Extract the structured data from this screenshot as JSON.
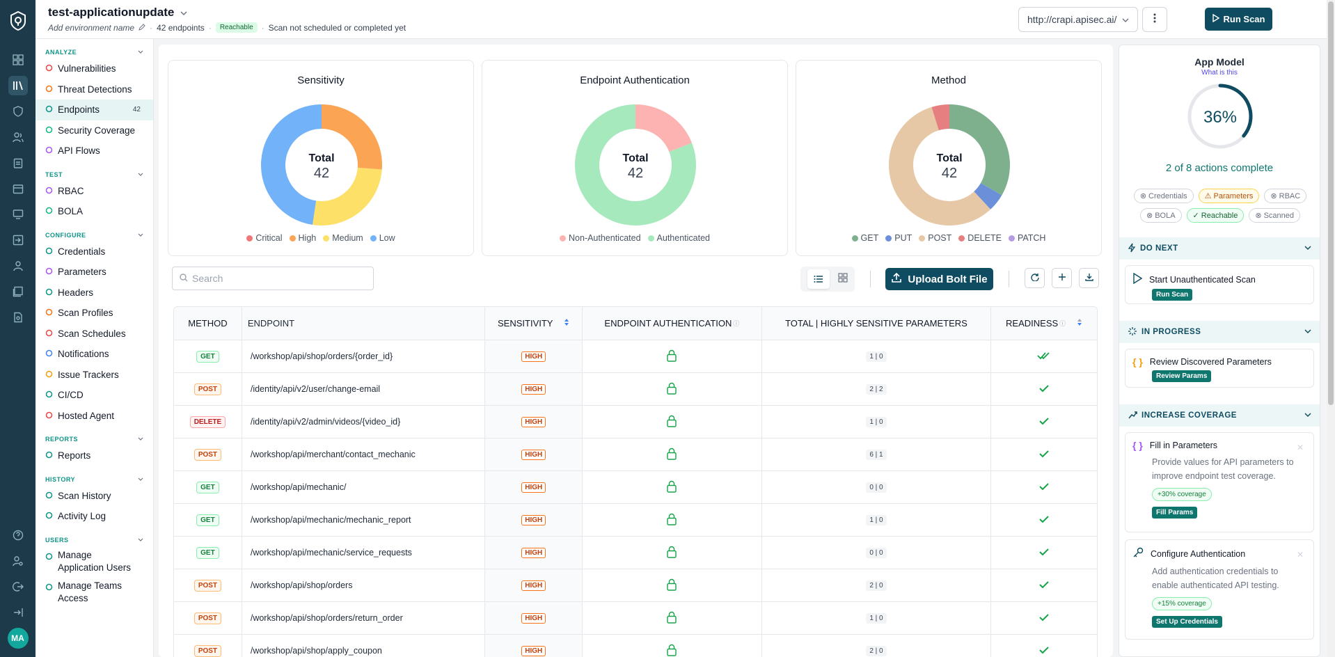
{
  "header": {
    "app_name": "test-applicationupdate",
    "env_placeholder": "Add environment name",
    "endpoints_count": "42 endpoints",
    "reachable": "Reachable",
    "scan_status": "Scan not scheduled or completed yet",
    "url": "http://crapi.apisec.ai/",
    "run_scan": "Run Scan"
  },
  "user": {
    "initials": "MA"
  },
  "sidebar": {
    "analyze": "ANALYZE",
    "analyze_items": [
      {
        "label": "Vulnerabilities",
        "icon": "bug-icon",
        "color": "#ef4444"
      },
      {
        "label": "Threat Detections",
        "icon": "radar-icon",
        "color": "#f97316"
      },
      {
        "label": "Endpoints",
        "icon": "endpoints-icon",
        "color": "#0d9488",
        "count": "42"
      },
      {
        "label": "Security Coverage",
        "icon": "shield-icon",
        "color": "#10b981"
      },
      {
        "label": "API Flows",
        "icon": "flow-icon",
        "color": "#a855f7"
      }
    ],
    "test": "TEST",
    "test_items": [
      {
        "label": "RBAC",
        "icon": "rbac-icon",
        "color": "#a855f7"
      },
      {
        "label": "BOLA",
        "icon": "bola-icon",
        "color": "#10b981"
      }
    ],
    "configure": "CONFIGURE",
    "configure_items": [
      {
        "label": "Credentials",
        "icon": "key-icon",
        "color": "#0d9488"
      },
      {
        "label": "Parameters",
        "icon": "braces-icon",
        "color": "#a855f7"
      },
      {
        "label": "Headers",
        "icon": "headers-icon",
        "color": "#0d9488"
      },
      {
        "label": "Scan Profiles",
        "icon": "profile-icon",
        "color": "#f97316"
      },
      {
        "label": "Scan Schedules",
        "icon": "calendar-icon",
        "color": "#ef4444"
      },
      {
        "label": "Notifications",
        "icon": "bell-icon",
        "color": "#3b82f6"
      },
      {
        "label": "Issue Trackers",
        "icon": "tracker-icon",
        "color": "#f59e0b"
      },
      {
        "label": "CI/CD",
        "icon": "cicd-icon",
        "color": "#0d9488"
      },
      {
        "label": "Hosted Agent",
        "icon": "agent-icon",
        "color": "#ef4444"
      }
    ],
    "reports": "REPORTS",
    "reports_items": [
      {
        "label": "Reports",
        "icon": "report-icon",
        "color": "#0d9488"
      }
    ],
    "history": "HISTORY",
    "history_items": [
      {
        "label": "Scan History",
        "icon": "history-icon",
        "color": "#0d9488"
      },
      {
        "label": "Activity Log",
        "icon": "activity-icon",
        "color": "#0d9488"
      }
    ],
    "users": "USERS",
    "users_items": [
      {
        "label": "Manage Application Users",
        "icon": "users-icon",
        "color": "#0d9488"
      },
      {
        "label": "Manage Teams Access",
        "icon": "teams-icon",
        "color": "#0d9488"
      }
    ]
  },
  "charts": {
    "total_label": "Total",
    "sensitivity": {
      "title": "Sensitivity",
      "total": "42",
      "slices": [
        {
          "name": "High",
          "value": 11,
          "color": "#fba454"
        },
        {
          "name": "Medium",
          "value": 11,
          "color": "#fde068"
        },
        {
          "name": "Low",
          "value": 20,
          "color": "#71b2f8"
        }
      ],
      "legend": [
        {
          "name": "Critical",
          "color": "#ef7777"
        },
        {
          "name": "High",
          "color": "#fba454"
        },
        {
          "name": "Medium",
          "color": "#fde068"
        },
        {
          "name": "Low",
          "color": "#71b2f8"
        }
      ]
    },
    "auth": {
      "title": "Endpoint Authentication",
      "total": "42",
      "slices": [
        {
          "name": "Non-Authenticated",
          "value": 8,
          "color": "#fdb3b1"
        },
        {
          "name": "Authenticated",
          "value": 34,
          "color": "#a6e9bd"
        }
      ],
      "legend": [
        {
          "name": "Non-Authenticated",
          "color": "#fdb3b1"
        },
        {
          "name": "Authenticated",
          "color": "#a6e9bd"
        }
      ]
    },
    "method": {
      "title": "Method",
      "total": "42",
      "slices": [
        {
          "name": "GET",
          "value": 14,
          "color": "#7fb08d"
        },
        {
          "name": "PUT",
          "value": 2,
          "color": "#6b8fd9"
        },
        {
          "name": "POST",
          "value": 24,
          "color": "#e6c8a6"
        },
        {
          "name": "DELETE",
          "value": 2,
          "color": "#e57f80"
        }
      ],
      "legend": [
        {
          "name": "GET",
          "color": "#7fb08d"
        },
        {
          "name": "PUT",
          "color": "#6b8fd9"
        },
        {
          "name": "POST",
          "color": "#e6c8a6"
        },
        {
          "name": "DELETE",
          "color": "#e57f80"
        },
        {
          "name": "PATCH",
          "color": "#b79ce3"
        }
      ]
    }
  },
  "toolbar": {
    "search_placeholder": "Search",
    "upload": "Upload Bolt File"
  },
  "table": {
    "headers": [
      "METHOD",
      "ENDPOINT",
      "SENSITIVITY",
      "ENDPOINT AUTHENTICATION",
      "TOTAL | HIGHLY SENSITIVE PARAMETERS",
      "READINESS"
    ],
    "rows": [
      {
        "method": "GET",
        "endpoint": "/workshop/api/shop/orders/{order_id}",
        "sensitivity": "HIGH",
        "params": "1 | 0",
        "readiness": "double"
      },
      {
        "method": "POST",
        "endpoint": "/identity/api/v2/user/change-email",
        "sensitivity": "HIGH",
        "params": "2 | 2",
        "readiness": "single"
      },
      {
        "method": "DELETE",
        "endpoint": "/identity/api/v2/admin/videos/{video_id}",
        "sensitivity": "HIGH",
        "params": "1 | 0",
        "readiness": "single"
      },
      {
        "method": "POST",
        "endpoint": "/workshop/api/merchant/contact_mechanic",
        "sensitivity": "HIGH",
        "params": "6 | 1",
        "readiness": "single"
      },
      {
        "method": "GET",
        "endpoint": "/workshop/api/mechanic/",
        "sensitivity": "HIGH",
        "params": "0 | 0",
        "readiness": "single"
      },
      {
        "method": "GET",
        "endpoint": "/workshop/api/mechanic/mechanic_report",
        "sensitivity": "HIGH",
        "params": "1 | 0",
        "readiness": "single"
      },
      {
        "method": "GET",
        "endpoint": "/workshop/api/mechanic/service_requests",
        "sensitivity": "HIGH",
        "params": "0 | 0",
        "readiness": "single"
      },
      {
        "method": "POST",
        "endpoint": "/workshop/api/shop/orders",
        "sensitivity": "HIGH",
        "params": "2 | 0",
        "readiness": "single"
      },
      {
        "method": "POST",
        "endpoint": "/workshop/api/shop/orders/return_order",
        "sensitivity": "HIGH",
        "params": "1 | 0",
        "readiness": "single"
      },
      {
        "method": "POST",
        "endpoint": "/workshop/api/shop/apply_coupon",
        "sensitivity": "HIGH",
        "params": "2 | 0",
        "readiness": "single"
      }
    ]
  },
  "app_model": {
    "title": "App Model",
    "what_is": "What is this",
    "percent": 36,
    "percent_label": "36%",
    "actions": "2 of 8 actions complete",
    "chips": [
      {
        "label": "Credentials",
        "state": "off"
      },
      {
        "label": "Parameters",
        "state": "warn"
      },
      {
        "label": "RBAC",
        "state": "off"
      },
      {
        "label": "BOLA",
        "state": "off"
      },
      {
        "label": "Reachable",
        "state": "ok"
      },
      {
        "label": "Scanned",
        "state": "off"
      }
    ],
    "do_next": "DO NEXT",
    "do_next_card": {
      "title": "Start Unauthenticated Scan",
      "button": "Run Scan"
    },
    "in_progress": "IN PROGRESS",
    "in_progress_card": {
      "title": "Review Discovered Parameters",
      "button": "Review Params"
    },
    "increase": "INCREASE COVERAGE",
    "inc_cards": [
      {
        "title": "Fill in Parameters",
        "desc": "Provide values for API parameters to improve endpoint test coverage.",
        "badge": "+30% coverage",
        "button": "Fill Params"
      },
      {
        "title": "Configure Authentication",
        "desc": "Add authentication credentials to enable authenticated API testing.",
        "badge": "+15% coverage",
        "button": "Set Up Credentials"
      }
    ]
  }
}
